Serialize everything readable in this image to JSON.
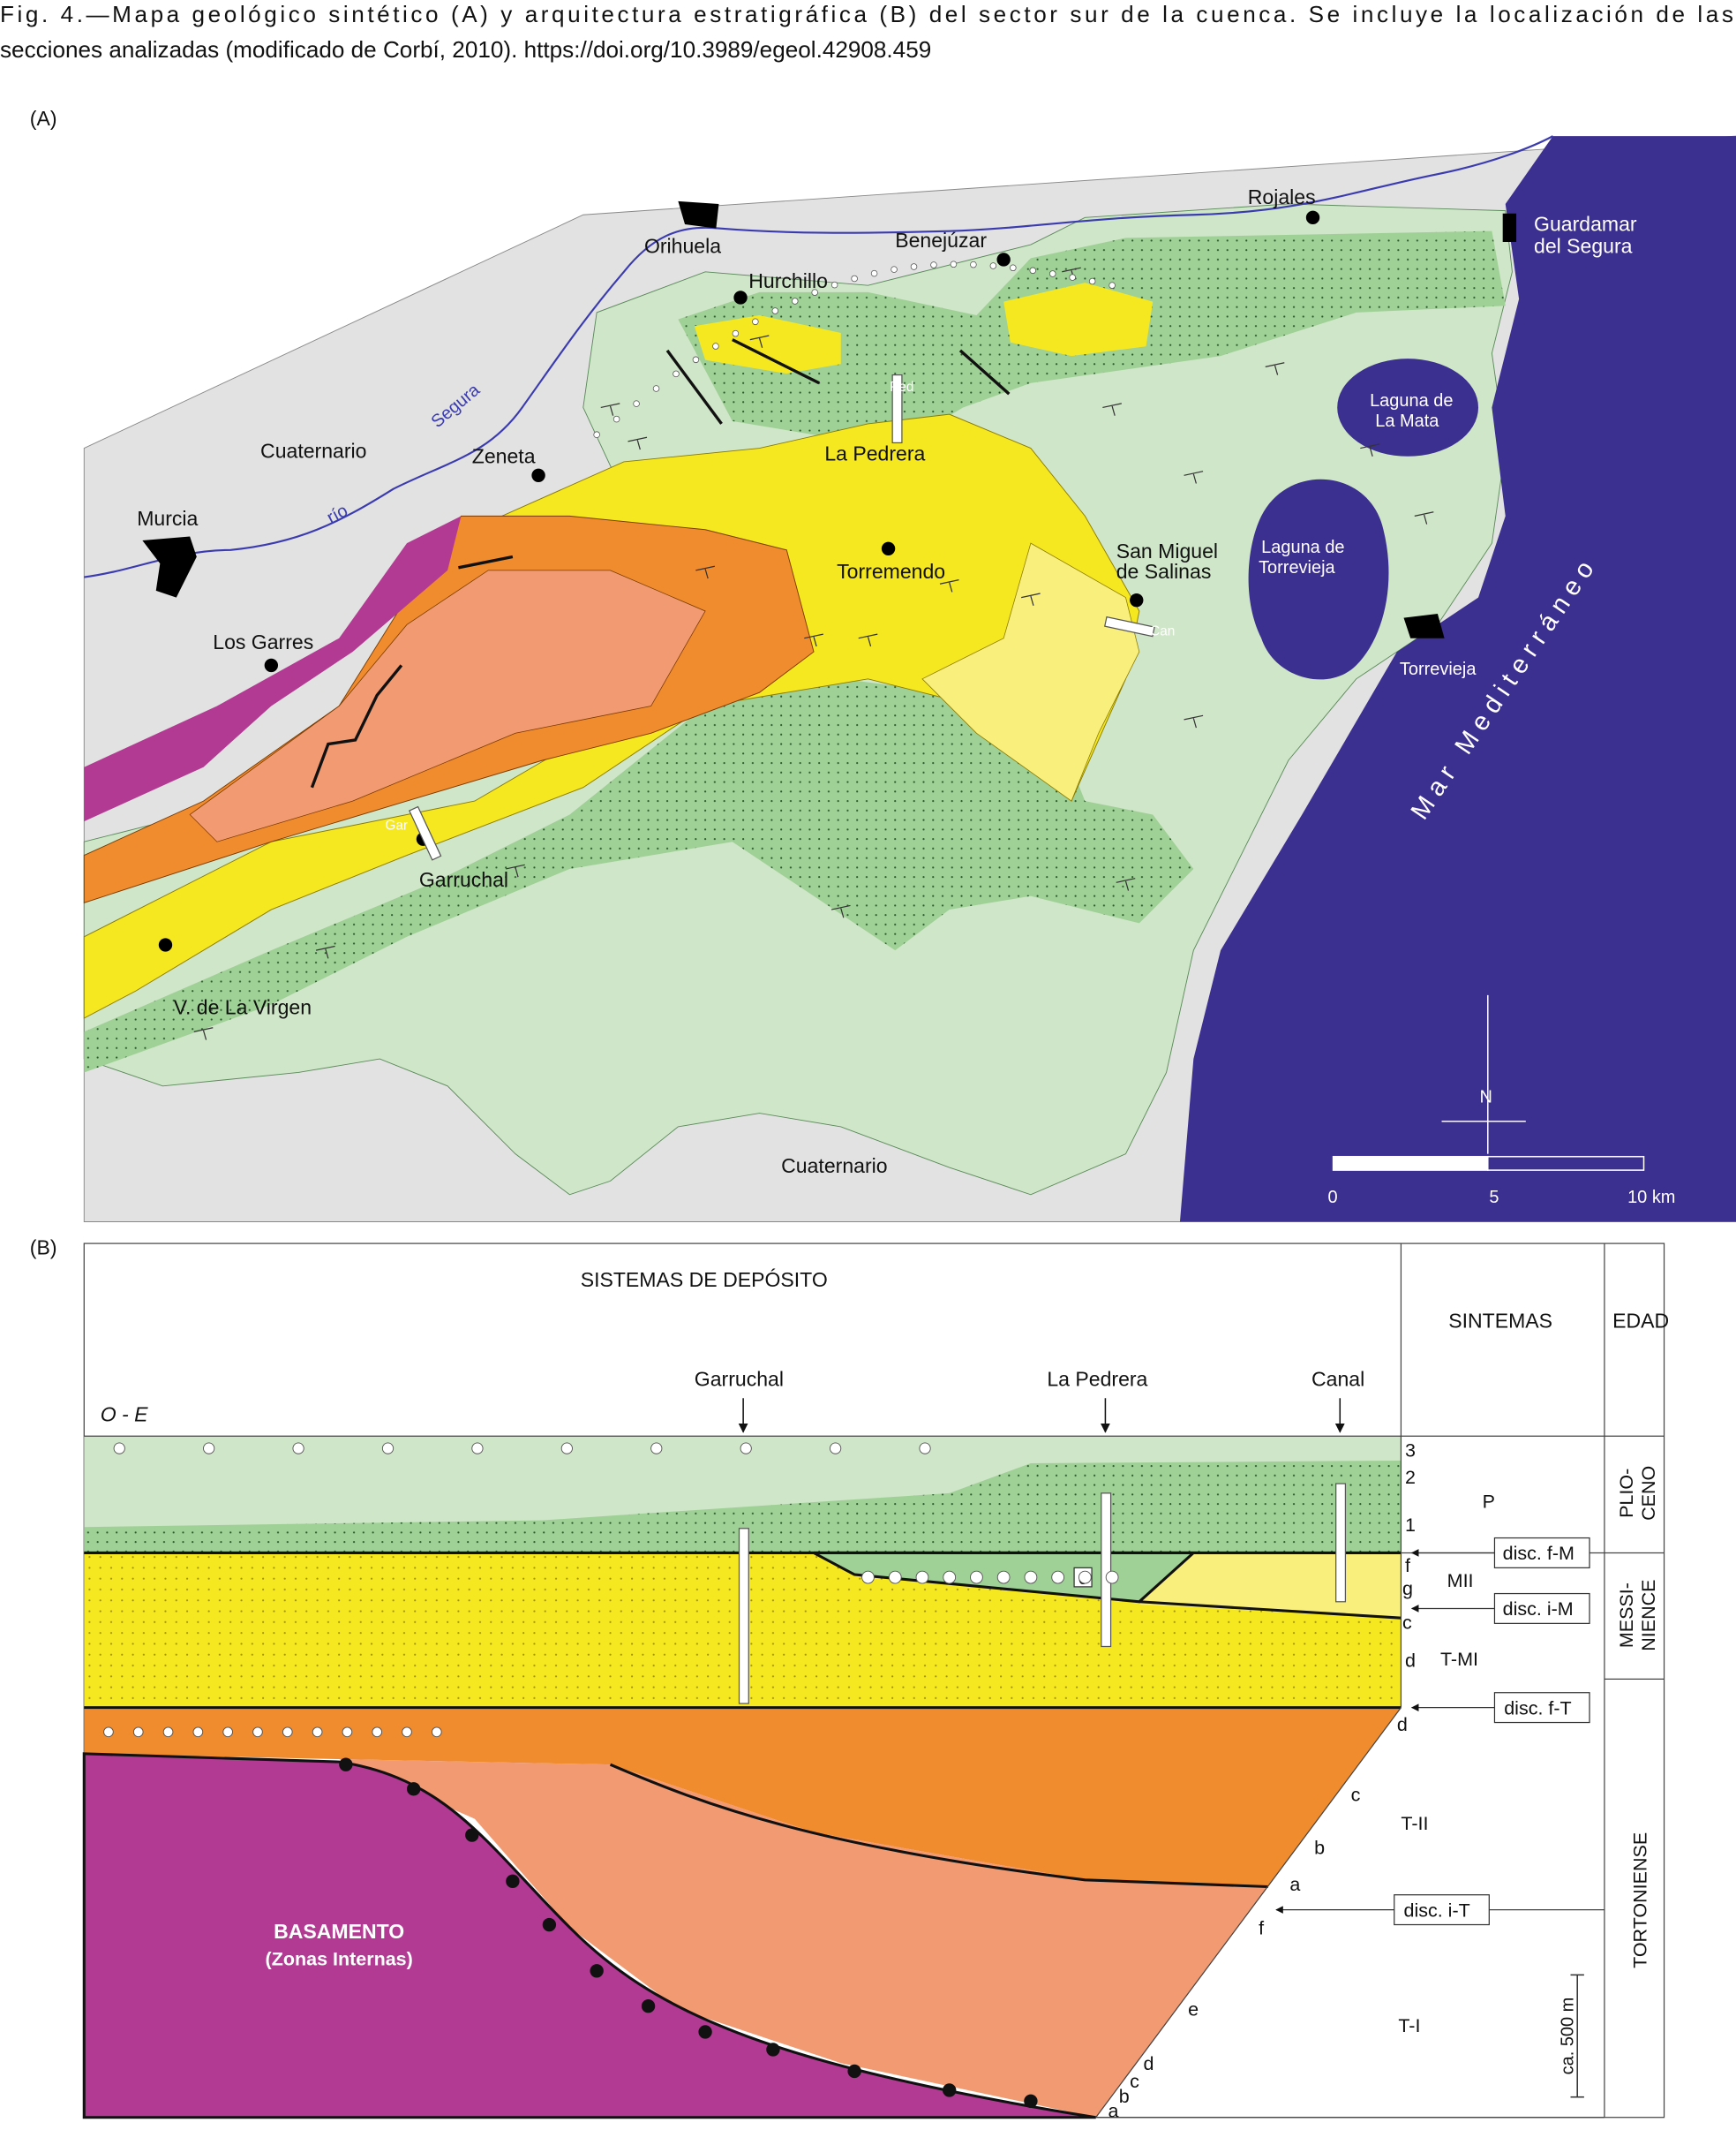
{
  "caption": [
    "Fig. 4.—Mapa geológico sintético (A) y arquitectura estratigráfica (B) del sector sur de la cuenca. Se incluye la localización de las",
    "secciones analizadas (modificado de Corbí, 2010). https://doi.org/10.3989/egeol.42908.459"
  ],
  "panel_a": {
    "label": "(A)",
    "quaternary": [
      "Cuaternario",
      "Cuaternario"
    ],
    "river": [
      "río",
      "Segura"
    ],
    "places": [
      "Murcia",
      "Orihuela",
      "Benejúzar",
      "Rojales",
      "Guardamar",
      "del Segura",
      "Hurchillo",
      "Zeneta",
      "La Pedrera",
      "Torremendo",
      "San Miguel",
      "de Salinas",
      "Laguna de",
      "La Mata",
      "Laguna de",
      "Torrevieja",
      "Torrevieja",
      "Los Garres",
      "Garruchal",
      "V. de La Virgen"
    ],
    "sections": [
      "Ped",
      "Can",
      "Gar"
    ],
    "sea": "Mar Mediterráneo",
    "north": "N",
    "scale": [
      "0",
      "5",
      "10 km"
    ]
  },
  "panel_b": {
    "label": "(B)",
    "title": "SISTEMAS DE DEPÓSITO",
    "sintemas_header": "SINTEMAS",
    "edad_header": "EDAD",
    "orientation": "O - E",
    "sections": [
      "Garruchal",
      "La Pedrera",
      "Canal"
    ],
    "edge_labels": [
      "3",
      "2",
      "1",
      "f",
      "g",
      "c",
      "d",
      "d",
      "c",
      "b",
      "a",
      "f",
      "e",
      "d",
      "c",
      "b",
      "a"
    ],
    "sintemas": [
      "P",
      "MII",
      "T-MI",
      "T-II",
      "T-I"
    ],
    "ages": [
      [
        "PLIO-",
        "CENO"
      ],
      [
        "MESSI-",
        "NIENCE"
      ],
      [
        "TORTONIENSE"
      ]
    ],
    "discontinuities": [
      "disc. f-M",
      "disc. i-M",
      "disc. f-T",
      "disc. i-T"
    ],
    "block": "0",
    "basement": [
      "BASAMENTO",
      "(Zonas Internas)"
    ],
    "scale_bar": "ca. 500 m"
  }
}
